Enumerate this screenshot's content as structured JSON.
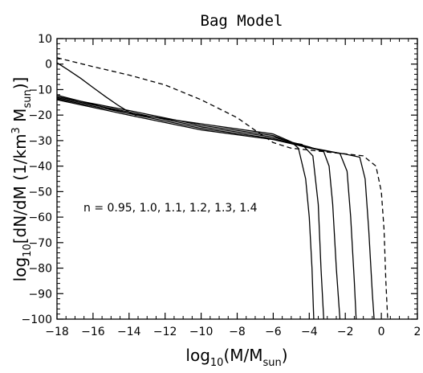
{
  "chart_data": {
    "type": "line",
    "title": "Bag Model",
    "xlabel": "log10(M/Msun)",
    "ylabel": "log10[dN/dM (1/km^3 Msun)]",
    "xlim": [
      -18,
      2
    ],
    "ylim": [
      -100,
      10
    ],
    "x_ticks": [
      -18,
      -16,
      -14,
      -12,
      -10,
      -8,
      -6,
      -4,
      -2,
      0,
      2
    ],
    "y_ticks": [
      -100,
      -90,
      -80,
      -70,
      -60,
      -50,
      -40,
      -30,
      -20,
      -10,
      0,
      10
    ],
    "annotation": "n = 0.95, 1.0, 1.1, 1.2, 1.3, 1.4",
    "grid": false,
    "series": [
      {
        "style": "solid",
        "x": [
          -18,
          -14,
          -10,
          -6,
          -5,
          -4.6,
          -4.2,
          -4.0,
          -3.85,
          -3.75
        ],
        "y": [
          -12.2,
          -19.4,
          -23.4,
          -27.4,
          -30.5,
          -33,
          -45,
          -60,
          -80,
          -100
        ]
      },
      {
        "style": "solid",
        "x": [
          -18,
          -14,
          -10,
          -6,
          -5,
          -4.4,
          -3.8,
          -3.5,
          -3.35,
          -3.2
        ],
        "y": [
          -12.8,
          -18.2,
          -24.0,
          -28.0,
          -30.8,
          -31.5,
          -36,
          -55,
          -80,
          -100
        ]
      },
      {
        "style": "solid",
        "x": [
          -18,
          -14,
          -10,
          -6,
          -5,
          -4,
          -3.2,
          -2.9,
          -2.7,
          -2.5,
          -2.3
        ],
        "y": [
          -13.2,
          -18.8,
          -24.6,
          -28.6,
          -30.6,
          -32.5,
          -34.3,
          -40,
          -55,
          -80,
          -100
        ]
      },
      {
        "style": "solid",
        "x": [
          -18,
          -14,
          -10,
          -6,
          -5,
          -4,
          -3,
          -2.3,
          -1.9,
          -1.7,
          -1.5,
          -1.4
        ],
        "y": [
          -13.6,
          -19.4,
          -25.2,
          -29.2,
          -30.9,
          -32.7,
          -34.0,
          -35.0,
          -42,
          -60,
          -85,
          -100
        ]
      },
      {
        "style": "solid",
        "x": [
          -18,
          -14,
          -10,
          -6,
          -5,
          -4,
          -3,
          -2,
          -1.2,
          -0.9,
          -0.7,
          -0.5,
          -0.4
        ],
        "y": [
          -14.0,
          -20.0,
          -25.8,
          -29.6,
          -31.2,
          -32.9,
          -34.2,
          -35.3,
          -36.5,
          -45,
          -65,
          -90,
          -100
        ]
      },
      {
        "style": "solid",
        "x": [
          -18,
          -17.4,
          -16.7,
          -16,
          -15.3,
          -14.6,
          -14.0,
          -13.6
        ],
        "y": [
          0.5,
          -2.2,
          -5.5,
          -9.2,
          -12.8,
          -16.2,
          -18.8,
          -20.2
        ]
      },
      {
        "style": "dashed",
        "x": [
          -18,
          -16,
          -14,
          -12,
          -10,
          -8,
          -7,
          -6,
          -5,
          -4,
          -3,
          -2,
          -1,
          -0.3,
          0,
          0.15,
          0.25,
          0.35
        ],
        "y": [
          2.5,
          -1.0,
          -4.3,
          -8.2,
          -14.0,
          -21.0,
          -26.0,
          -30.8,
          -33.0,
          -33.7,
          -34.5,
          -35.2,
          -36.0,
          -40,
          -50,
          -65,
          -85,
          -100
        ]
      }
    ]
  }
}
